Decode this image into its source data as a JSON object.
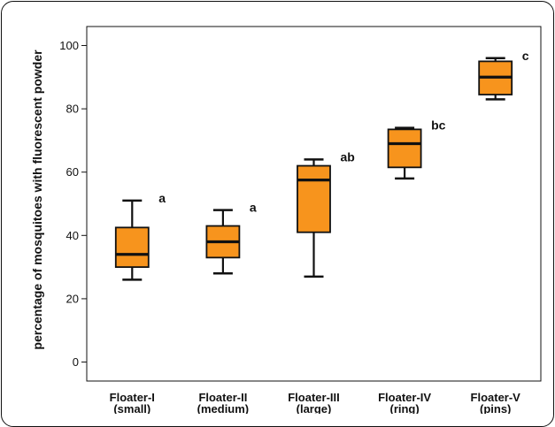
{
  "chart_data": {
    "type": "box",
    "title": "",
    "xlabel": "",
    "ylabel": "percentage of mosquitoes with fluorescent powder",
    "ylim": [
      -6,
      106
    ],
    "yticks": [
      "0",
      "20",
      "40",
      "60",
      "80",
      "100"
    ],
    "categories": [
      {
        "name": "Floater-I",
        "sub": "(small)"
      },
      {
        "name": "Floater-II",
        "sub": "(medium)"
      },
      {
        "name": "Floater-III",
        "sub": "(large)"
      },
      {
        "name": "Floater-IV",
        "sub": "(ring)"
      },
      {
        "name": "Floater-V",
        "sub": "(pins)"
      }
    ],
    "boxes": [
      {
        "min": 26,
        "q1": 30,
        "median": 34,
        "q3": 42.5,
        "max": 51,
        "group": "a"
      },
      {
        "min": 28,
        "q1": 33,
        "median": 38,
        "q3": 43,
        "max": 48,
        "group": "a"
      },
      {
        "min": 27,
        "q1": 41,
        "median": 57.5,
        "q3": 62,
        "max": 64,
        "group": "ab"
      },
      {
        "min": 58,
        "q1": 61.5,
        "median": 69,
        "q3": 73.5,
        "max": 74,
        "group": "bc"
      },
      {
        "min": 83,
        "q1": 84.5,
        "median": 90,
        "q3": 95,
        "max": 96,
        "group": "c"
      }
    ],
    "box_color": "#f7941d",
    "grid": false,
    "legend": "none"
  }
}
